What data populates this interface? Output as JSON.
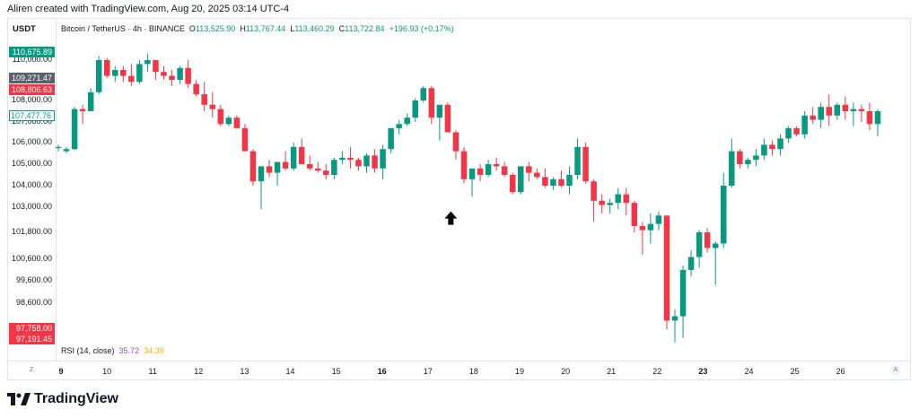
{
  "header": {
    "caption": "Aliren created with TradingView.com, Aug 20, 2025 03:14 UTC-4"
  },
  "legend": {
    "unit": "USDT",
    "symbol": "Bitcoin / TetherUS · 4h · BINANCE",
    "ohlc_prefix_o": "O",
    "ohlc_o": "113,525.90",
    "ohlc_prefix_h": "H",
    "ohlc_h": "113,767.44",
    "ohlc_prefix_l": "L",
    "ohlc_l": "113,460.29",
    "ohlc_prefix_c": "C",
    "ohlc_c": "113,722.84",
    "change": "+196.93 (+0.17%)"
  },
  "indicator": {
    "name": "RSI (14, close)",
    "value1": "35.72",
    "value2": "34.39"
  },
  "price_tags": [
    {
      "label": "110,675.89",
      "style": "green"
    },
    {
      "label": "109,271.47",
      "style": "gray"
    },
    {
      "label": "108,806.63",
      "style": "red"
    },
    {
      "label": "107,477.76",
      "style": "outline"
    },
    {
      "label": "97,758.00",
      "style": "red"
    },
    {
      "label": "97,191.45",
      "style": "red"
    }
  ],
  "corner_buttons": {
    "left": "Z",
    "right": "A"
  },
  "brand": {
    "name": "TradingView"
  },
  "colors": {
    "up": "#089981",
    "down": "#f23645",
    "grid": "#e0e3eb",
    "text": "#131722"
  },
  "chart_data": {
    "type": "candlestick",
    "y_ticks": [
      "110,000.00",
      "109,000.00",
      "108,000.00",
      "107,000.00",
      "106,000.00",
      "105,000.00",
      "104,000.00",
      "103,000.00",
      "101,800.00",
      "100,600.00",
      "99,600.00",
      "98,600.00"
    ],
    "y_tick_values": [
      110000,
      109000,
      108000,
      107000,
      106000,
      105000,
      104000,
      103000,
      101800,
      100600,
      99600,
      98600
    ],
    "x_ticks": [
      "9",
      "10",
      "11",
      "12",
      "13",
      "14",
      "15",
      "16",
      "17",
      "18",
      "19",
      "20",
      "21",
      "22",
      "23",
      "24",
      "25",
      "26"
    ],
    "x_bold_ticks": [
      "9",
      "16",
      "23"
    ],
    "annotation": {
      "type": "arrow-up",
      "near_day": 17.5,
      "price": 102500
    },
    "grid": false,
    "candles": [
      [
        105750,
        105900,
        105600,
        105800
      ],
      [
        105600,
        105800,
        105500,
        105700
      ],
      [
        105700,
        107700,
        105650,
        107600
      ],
      [
        107600,
        107800,
        106900,
        107500
      ],
      [
        107500,
        108600,
        107500,
        108400
      ],
      [
        108400,
        110200,
        108300,
        110000
      ],
      [
        110000,
        110100,
        109100,
        109200
      ],
      [
        109200,
        109700,
        108900,
        109500
      ],
      [
        109500,
        109700,
        108900,
        109200
      ],
      [
        109200,
        109800,
        108700,
        108900
      ],
      [
        108900,
        110000,
        108800,
        109800
      ],
      [
        109800,
        110300,
        109400,
        110000
      ],
      [
        110000,
        110000,
        109000,
        109400
      ],
      [
        109400,
        109700,
        109000,
        109200
      ],
      [
        109200,
        109500,
        108700,
        109000
      ],
      [
        109000,
        109700,
        108800,
        109600
      ],
      [
        109600,
        110000,
        108600,
        108800
      ],
      [
        108800,
        109000,
        108200,
        108300
      ],
      [
        108300,
        108900,
        107500,
        107800
      ],
      [
        107800,
        108400,
        107200,
        107600
      ],
      [
        107600,
        107800,
        106800,
        106900
      ],
      [
        106900,
        107300,
        106800,
        107200
      ],
      [
        107200,
        107300,
        106800,
        106700
      ],
      [
        106700,
        106900,
        105700,
        105600
      ],
      [
        105600,
        105700,
        104000,
        104200
      ],
      [
        104200,
        104800,
        102900,
        104900
      ],
      [
        104900,
        105200,
        104400,
        104600
      ],
      [
        104600,
        105100,
        104000,
        105100
      ],
      [
        105100,
        105600,
        104700,
        104800
      ],
      [
        104800,
        106000,
        104700,
        105800
      ],
      [
        105800,
        106200,
        105100,
        105000
      ],
      [
        105000,
        105400,
        104700,
        104800
      ],
      [
        104800,
        105100,
        104600,
        104700
      ],
      [
        104700,
        105000,
        104300,
        104500
      ],
      [
        104500,
        105300,
        104300,
        105200
      ],
      [
        105200,
        105600,
        105000,
        105300
      ],
      [
        105300,
        105800,
        104800,
        105200
      ],
      [
        105200,
        105300,
        104700,
        104900
      ],
      [
        104900,
        105500,
        104600,
        105400
      ],
      [
        105400,
        105700,
        104600,
        104800
      ],
      [
        104800,
        105900,
        104300,
        105700
      ],
      [
        105700,
        106700,
        105500,
        106700
      ],
      [
        106700,
        107100,
        106400,
        106900
      ],
      [
        106900,
        107400,
        106800,
        107200
      ],
      [
        107200,
        108100,
        107000,
        108000
      ],
      [
        108000,
        108700,
        107900,
        108600
      ],
      [
        108600,
        108700,
        106900,
        107200
      ],
      [
        107200,
        107800,
        106100,
        107800
      ],
      [
        107800,
        107900,
        106500,
        106500
      ],
      [
        106500,
        106600,
        105200,
        105600
      ],
      [
        105600,
        105800,
        104100,
        104300
      ],
      [
        104300,
        104800,
        103500,
        104800
      ],
      [
        104800,
        105000,
        104200,
        104500
      ],
      [
        104500,
        105200,
        104400,
        105000
      ],
      [
        105000,
        105300,
        104700,
        104900
      ],
      [
        104900,
        105100,
        104400,
        104500
      ],
      [
        104500,
        104600,
        103600,
        103700
      ],
      [
        103700,
        104900,
        103600,
        104900
      ],
      [
        104900,
        105100,
        104200,
        104600
      ],
      [
        104600,
        104800,
        104300,
        104400
      ],
      [
        104400,
        104800,
        103900,
        104000
      ],
      [
        104000,
        104400,
        103800,
        104300
      ],
      [
        104300,
        104700,
        103900,
        104000
      ],
      [
        104000,
        104900,
        103600,
        104500
      ],
      [
        104500,
        106200,
        104300,
        105800
      ],
      [
        105800,
        106000,
        104100,
        104200
      ],
      [
        104200,
        104300,
        102300,
        103300
      ],
      [
        103300,
        103600,
        102700,
        103100
      ],
      [
        103100,
        103400,
        102700,
        103200
      ],
      [
        103200,
        103900,
        102900,
        103600
      ],
      [
        103600,
        103900,
        102600,
        103200
      ],
      [
        103200,
        103300,
        101800,
        102100
      ],
      [
        102100,
        102300,
        100800,
        101900
      ],
      [
        101900,
        102700,
        101300,
        102200
      ],
      [
        102200,
        102800,
        101900,
        102600
      ],
      [
        102600,
        102600,
        97400,
        97800
      ],
      [
        97800,
        98300,
        96800,
        98000
      ],
      [
        98000,
        100300,
        97000,
        100100
      ],
      [
        100100,
        101000,
        99800,
        100700
      ],
      [
        100700,
        101900,
        100200,
        101800
      ],
      [
        101800,
        102000,
        100900,
        101100
      ],
      [
        101100,
        101400,
        99400,
        101300
      ],
      [
        101300,
        104600,
        101100,
        104000
      ],
      [
        104000,
        106200,
        103900,
        105600
      ],
      [
        105600,
        105700,
        104800,
        105000
      ],
      [
        105000,
        105300,
        104800,
        105200
      ],
      [
        105200,
        105700,
        104900,
        105400
      ],
      [
        105400,
        106200,
        105200,
        105900
      ],
      [
        105900,
        106100,
        105400,
        105700
      ],
      [
        105700,
        106400,
        105400,
        106200
      ],
      [
        106200,
        106800,
        106000,
        106700
      ],
      [
        106700,
        106800,
        106300,
        106400
      ],
      [
        106400,
        107500,
        106200,
        107300
      ],
      [
        107300,
        107700,
        106900,
        107100
      ],
      [
        107100,
        107900,
        106700,
        107700
      ],
      [
        107700,
        108300,
        106800,
        107300
      ],
      [
        107300,
        107900,
        107100,
        107800
      ],
      [
        107800,
        108200,
        107100,
        107500
      ],
      [
        107500,
        107900,
        106800,
        107600
      ],
      [
        107600,
        107800,
        107000,
        107500
      ],
      [
        107500,
        107900,
        106600,
        106900
      ],
      [
        106900,
        107600,
        106300,
        107500
      ]
    ]
  }
}
